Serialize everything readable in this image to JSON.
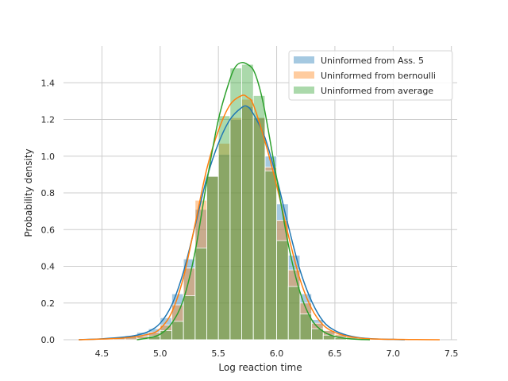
{
  "chart_data": {
    "type": "bar",
    "title": "",
    "xlabel": "Log reaction time",
    "ylabel": "Probability density",
    "xlim": [
      4.17,
      7.55
    ],
    "ylim": [
      0,
      1.6
    ],
    "xticks": [
      4.5,
      5.0,
      5.5,
      6.0,
      6.5,
      7.0,
      7.5
    ],
    "xtick_labels": [
      "4.5",
      "5.0",
      "5.5",
      "6.0",
      "6.5",
      "7.0",
      "7.5"
    ],
    "yticks": [
      0.0,
      0.2,
      0.4,
      0.6,
      0.8,
      1.0,
      1.2,
      1.4
    ],
    "ytick_labels": [
      "0.0",
      "0.2",
      "0.4",
      "0.6",
      "0.8",
      "1.0",
      "1.2",
      "1.4"
    ],
    "grid": true,
    "legend_position": "upper right",
    "series": [
      {
        "name": "Uninformed from Ass. 5",
        "color": "#1f77b4",
        "bin_edges": [
          4.3,
          4.4,
          4.5,
          4.6,
          4.7,
          4.8,
          4.9,
          5.0,
          5.1,
          5.2,
          5.3,
          5.4,
          5.5,
          5.6,
          5.7,
          5.8,
          5.9,
          6.0,
          6.1,
          6.2,
          6.3,
          6.4,
          6.5,
          6.6,
          6.7,
          6.8,
          6.9,
          7.0,
          7.1
        ],
        "hist": [
          0.003,
          0.005,
          0.008,
          0.012,
          0.022,
          0.04,
          0.06,
          0.12,
          0.25,
          0.44,
          0.71,
          0.89,
          1.01,
          1.2,
          1.27,
          1.21,
          1.0,
          0.74,
          0.46,
          0.25,
          0.11,
          0.05,
          0.025,
          0.012,
          0.006,
          0.003,
          0.002,
          0.001
        ],
        "kde_x": [
          4.3,
          4.5,
          4.7,
          4.8,
          4.9,
          5.0,
          5.1,
          5.2,
          5.3,
          5.4,
          5.5,
          5.6,
          5.7,
          5.75,
          5.8,
          5.9,
          6.0,
          6.1,
          6.2,
          6.3,
          6.4,
          6.5,
          6.6,
          6.7,
          6.8,
          6.9,
          7.0,
          7.1
        ],
        "kde_y": [
          0.0,
          0.005,
          0.015,
          0.025,
          0.045,
          0.09,
          0.19,
          0.37,
          0.62,
          0.88,
          1.07,
          1.2,
          1.265,
          1.27,
          1.23,
          1.1,
          0.88,
          0.62,
          0.38,
          0.21,
          0.1,
          0.05,
          0.025,
          0.012,
          0.006,
          0.003,
          0.002,
          0.0
        ]
      },
      {
        "name": "Uninformed from bernoulli",
        "color": "#ff7f0e",
        "bin_edges": [
          4.3,
          4.4,
          4.5,
          4.6,
          4.7,
          4.8,
          4.9,
          5.0,
          5.1,
          5.2,
          5.3,
          5.4,
          5.5,
          5.6,
          5.7,
          5.8,
          5.9,
          6.0,
          6.1,
          6.2,
          6.3,
          6.4,
          6.5,
          6.6,
          6.7,
          6.8,
          6.9,
          7.0,
          7.1,
          7.2,
          7.3,
          7.4
        ],
        "hist": [
          0.002,
          0.004,
          0.006,
          0.01,
          0.015,
          0.02,
          0.04,
          0.08,
          0.19,
          0.39,
          0.76,
          0.89,
          1.07,
          1.21,
          1.31,
          1.21,
          0.94,
          0.65,
          0.38,
          0.2,
          0.09,
          0.05,
          0.03,
          0.015,
          0.008,
          0.005,
          0.003,
          0.002,
          0.002,
          0.001,
          0.001
        ],
        "kde_x": [
          4.3,
          4.5,
          4.7,
          4.9,
          5.0,
          5.1,
          5.2,
          5.3,
          5.4,
          5.5,
          5.6,
          5.7,
          5.75,
          5.8,
          5.9,
          6.0,
          6.1,
          6.2,
          6.3,
          6.4,
          6.5,
          6.6,
          6.7,
          6.8,
          7.0,
          7.2,
          7.4
        ],
        "kde_y": [
          0.0,
          0.004,
          0.01,
          0.03,
          0.06,
          0.15,
          0.34,
          0.63,
          0.93,
          1.14,
          1.28,
          1.33,
          1.32,
          1.28,
          1.08,
          0.84,
          0.57,
          0.33,
          0.17,
          0.08,
          0.04,
          0.02,
          0.01,
          0.005,
          0.002,
          0.001,
          0.0
        ]
      },
      {
        "name": "Uninformed from average",
        "color": "#2ca02c",
        "bin_edges": [
          4.8,
          4.9,
          5.0,
          5.1,
          5.2,
          5.3,
          5.4,
          5.5,
          5.6,
          5.7,
          5.8,
          5.9,
          6.0,
          6.1,
          6.2,
          6.3,
          6.4,
          6.5,
          6.6,
          6.7,
          6.8
        ],
        "hist": [
          0.005,
          0.02,
          0.05,
          0.1,
          0.24,
          0.5,
          0.89,
          1.22,
          1.48,
          1.5,
          1.33,
          0.92,
          0.54,
          0.29,
          0.14,
          0.06,
          0.025,
          0.012,
          0.005,
          0.002
        ],
        "kde_x": [
          4.8,
          4.9,
          5.0,
          5.1,
          5.2,
          5.3,
          5.4,
          5.5,
          5.6,
          5.65,
          5.7,
          5.75,
          5.8,
          5.85,
          5.9,
          6.0,
          6.1,
          6.2,
          6.3,
          6.4,
          6.5,
          6.6,
          6.7,
          6.8
        ],
        "kde_y": [
          0.0,
          0.01,
          0.03,
          0.09,
          0.22,
          0.48,
          0.86,
          1.2,
          1.42,
          1.49,
          1.51,
          1.5,
          1.47,
          1.38,
          1.24,
          0.88,
          0.52,
          0.26,
          0.11,
          0.045,
          0.018,
          0.007,
          0.002,
          0.0
        ]
      }
    ]
  }
}
